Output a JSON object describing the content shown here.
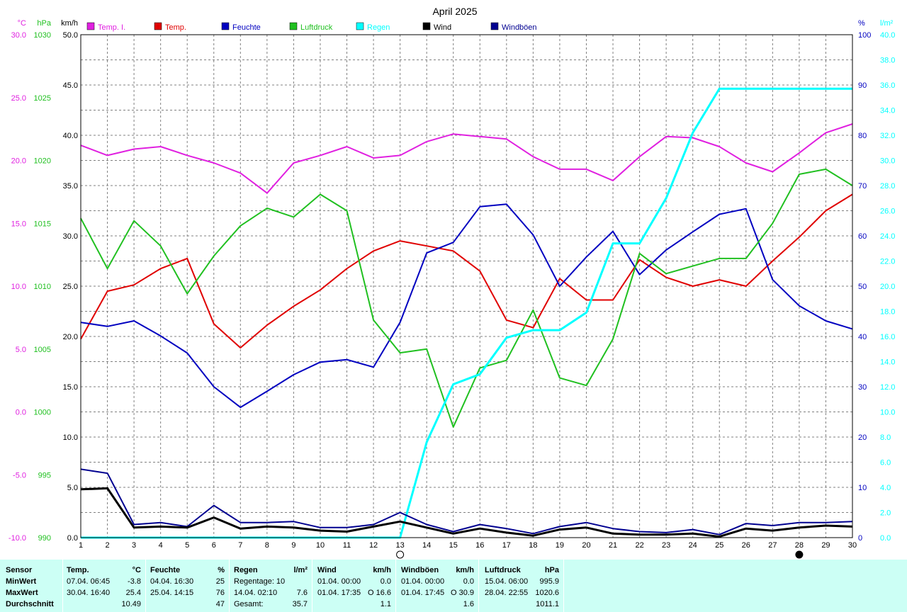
{
  "chart_data": {
    "type": "line",
    "title": "April 2025",
    "x": [
      1,
      2,
      3,
      4,
      5,
      6,
      7,
      8,
      9,
      10,
      11,
      12,
      13,
      14,
      15,
      16,
      17,
      18,
      19,
      20,
      21,
      22,
      23,
      24,
      25,
      26,
      27,
      28,
      29,
      30
    ],
    "axes": {
      "temp": {
        "label": "°C",
        "range": [
          -10,
          30
        ],
        "ticks": [
          "30.0",
          "25.0",
          "20.0",
          "15.0",
          "10.0",
          "5.0",
          "0.0",
          "-5.0",
          "-10.0"
        ],
        "color": "#e020e0"
      },
      "pressure": {
        "label": "hPa",
        "range": [
          990,
          1030
        ],
        "ticks": [
          "1030",
          "1025",
          "1020",
          "1015",
          "1010",
          "1005",
          "1000",
          "995",
          "990"
        ],
        "color": "#20c020"
      },
      "wind": {
        "label": "km/h",
        "range": [
          0,
          50
        ],
        "ticks": [
          "50.0",
          "45.0",
          "40.0",
          "35.0",
          "30.0",
          "25.0",
          "20.0",
          "15.0",
          "10.0",
          "5.0",
          "0.0"
        ],
        "color": "#000000"
      },
      "humidity": {
        "label": "%",
        "range": [
          0,
          100
        ],
        "ticks": [
          "100",
          "90",
          "80",
          "70",
          "60",
          "50",
          "40",
          "30",
          "20",
          "10",
          "0"
        ],
        "color": "#0000c0"
      },
      "rain": {
        "label": "l/m²",
        "range": [
          0,
          40
        ],
        "ticks": [
          "40.0",
          "38.0",
          "36.0",
          "34.0",
          "32.0",
          "30.0",
          "28.0",
          "26.0",
          "24.0",
          "22.0",
          "20.0",
          "18.0",
          "16.0",
          "14.0",
          "12.0",
          "10.0",
          "8.0",
          "6.0",
          "4.0",
          "2.0",
          "0.0"
        ],
        "color": "#00ffff"
      }
    },
    "x_ticks": [
      "1",
      "2",
      "3",
      "4",
      "5",
      "6",
      "7",
      "8",
      "9",
      "10",
      "11",
      "12",
      "13",
      "14",
      "15",
      "16",
      "17",
      "18",
      "19",
      "20",
      "21",
      "22",
      "23",
      "24",
      "25",
      "26",
      "27",
      "28",
      "29",
      "30"
    ],
    "grid": true,
    "legend_position": "top",
    "moon_phases": [
      {
        "day": 13,
        "phase": "full"
      },
      {
        "day": 28,
        "phase": "new"
      }
    ],
    "series": [
      {
        "name": "Temp. I.",
        "axis": "temp",
        "color": "#e020e0",
        "values": [
          21.2,
          20.4,
          20.9,
          21.1,
          20.4,
          19.8,
          19.0,
          17.4,
          19.8,
          20.4,
          21.1,
          20.2,
          20.4,
          21.5,
          22.1,
          21.9,
          21.7,
          20.3,
          19.3,
          19.3,
          18.4,
          20.3,
          21.9,
          21.8,
          21.1,
          19.8,
          19.1,
          20.6,
          22.2,
          22.9
        ]
      },
      {
        "name": "Temp.",
        "axis": "temp",
        "color": "#e00000",
        "values": [
          5.8,
          9.6,
          10.1,
          11.4,
          12.2,
          7.0,
          5.1,
          6.9,
          8.4,
          9.7,
          11.4,
          12.8,
          13.6,
          13.2,
          12.8,
          11.2,
          7.3,
          6.7,
          10.6,
          8.9,
          8.9,
          12.1,
          10.7,
          10.0,
          10.5,
          10.0,
          12.0,
          13.9,
          16.0,
          17.3
        ]
      },
      {
        "name": "Feuchte",
        "axis": "humidity",
        "color": "#0000c0",
        "values": [
          42.8,
          42.0,
          43.1,
          40.1,
          36.7,
          30.0,
          25.9,
          29.1,
          32.4,
          34.9,
          35.4,
          33.9,
          42.8,
          56.6,
          58.7,
          65.8,
          66.3,
          60.2,
          50.0,
          55.8,
          60.9,
          52.3,
          57.2,
          60.8,
          64.3,
          65.4,
          51.3,
          46.1,
          43.1,
          41.5
        ]
      },
      {
        "name": "Regen",
        "axis": "rain",
        "color": "#00ffff",
        "values": [
          0,
          0,
          0,
          0,
          0,
          0,
          0,
          0,
          0,
          0,
          0,
          0,
          0,
          7.6,
          12.2,
          13.0,
          15.9,
          16.5,
          16.5,
          17.9,
          23.4,
          23.4,
          27.0,
          32.2,
          35.7,
          35.7,
          35.7,
          35.7,
          35.7,
          35.7
        ]
      },
      {
        "name": "Luftdruck",
        "axis": "pressure",
        "color": "#20c020",
        "values": [
          1015.4,
          1011.4,
          1015.2,
          1013.2,
          1009.4,
          1012.4,
          1014.8,
          1016.2,
          1015.5,
          1017.3,
          1016.0,
          1007.3,
          1004.7,
          1005.0,
          998.8,
          1003.5,
          1004.1,
          1008.1,
          1002.7,
          1002.1,
          1005.8,
          1012.6,
          1011.0,
          1011.6,
          1012.2,
          1012.2,
          1015.0,
          1018.9,
          1019.3,
          1018.0
        ]
      },
      {
        "name": "Wind",
        "axis": "wind",
        "color": "#000000",
        "values": [
          4.8,
          4.9,
          1.0,
          1.1,
          1.0,
          2.0,
          0.9,
          1.1,
          1.0,
          0.7,
          0.6,
          1.1,
          1.6,
          1.0,
          0.4,
          0.9,
          0.5,
          0.2,
          0.8,
          1.0,
          0.4,
          0.3,
          0.3,
          0.4,
          0.1,
          0.9,
          0.7,
          1.0,
          1.2,
          1.1
        ]
      },
      {
        "name": "Windböen",
        "axis": "wind",
        "color": "#000090",
        "values": [
          6.8,
          6.4,
          1.3,
          1.5,
          1.1,
          3.2,
          1.5,
          1.5,
          1.6,
          1.0,
          1.0,
          1.3,
          2.5,
          1.3,
          0.6,
          1.3,
          0.9,
          0.4,
          1.1,
          1.5,
          0.9,
          0.6,
          0.5,
          0.8,
          0.3,
          1.4,
          1.2,
          1.5,
          1.5,
          1.6
        ]
      }
    ]
  },
  "stats": {
    "row_labels": {
      "header": "Sensor",
      "min": "MinWert",
      "max": "MaxWert",
      "avg": "Durchschnitt"
    },
    "temp": {
      "title": "Temp.",
      "unit": "°C",
      "min_date": "07.04.  06:45",
      "min_val": "-3.8",
      "max_date": "30.04.  16:40",
      "max_val": "25.4",
      "avg": "10.49"
    },
    "humidity": {
      "title": "Feuchte",
      "unit": "%",
      "min_date": "04.04.  16:30",
      "min_val": "25",
      "max_date": "25.04.  14:15",
      "max_val": "76",
      "avg": "47"
    },
    "rain": {
      "title": "Regen",
      "unit": "l/m²",
      "row1": "Regentage: 10",
      "row1_val": "",
      "row2": "14.04.  02:10",
      "row2_val": "7.6",
      "row3": "Gesamt:",
      "row3_val": "35.7"
    },
    "wind": {
      "title": "Wind",
      "unit": "km/h",
      "min_date": "01.04.  00:00",
      "min_val": "0.0",
      "max_date": "01.04.  17:35",
      "max_val": "O 16.6",
      "avg": "1.1"
    },
    "gust": {
      "title": "Windböen",
      "unit": "km/h",
      "min_date": "01.04.  00:00",
      "min_val": "0.0",
      "max_date": "01.04.  17:45",
      "max_val": "O 30.9",
      "avg": "1.6"
    },
    "pressure": {
      "title": "Luftdruck",
      "unit": "hPa",
      "min_date": "15.04.  06:00",
      "min_val": "995.9",
      "max_date": "28.04.  22:55",
      "max_val": "1020.6",
      "avg": "1011.1"
    }
  }
}
